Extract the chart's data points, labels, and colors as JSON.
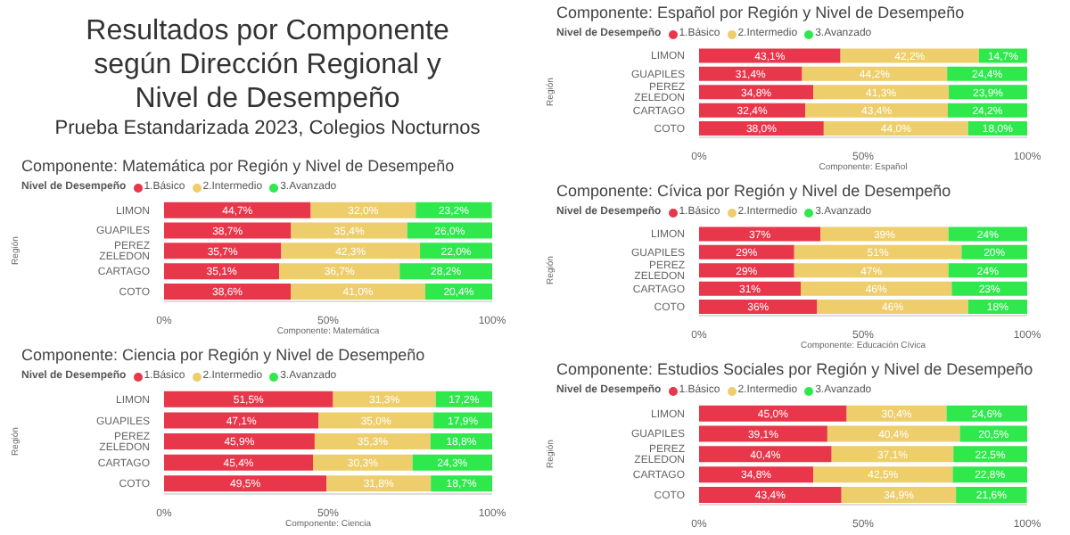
{
  "chart_data": [
    {
      "type": "other",
      "title": "Resultados por Componente según Dirección Regional y Nivel de Desempeño",
      "subtitle": "Prueba Estandarizada 2023, Colegios Nocturnos"
    },
    {
      "type": "bar",
      "orientation": "horizontal",
      "stacked": true,
      "title": "Componente: Matemática por Región y Nivel de Desempeño",
      "xlabel": "Componente: Matemática",
      "ylabel": "Región",
      "legend_title": "Nivel de Desempeño",
      "legend": "top left",
      "categories": [
        "LIMON",
        "GUAPILES",
        "PEREZ ZELEDON",
        "CARTAGO",
        "COTO"
      ],
      "xlim": [
        0,
        100
      ],
      "xticks": [
        {
          "value": 0,
          "label": "0%"
        },
        {
          "value": 50,
          "label": "50%"
        },
        {
          "value": 100,
          "label": "100%"
        }
      ],
      "series": [
        {
          "name": "1.Básico",
          "color": "#e8364a",
          "values": [
            44.7,
            38.7,
            35.7,
            35.1,
            38.6
          ],
          "value_labels": [
            "44,7%",
            "38,7%",
            "35,7%",
            "35,1%",
            "38,6%"
          ]
        },
        {
          "name": "2.Intermedio",
          "color": "#eecd6b",
          "values": [
            32.0,
            35.4,
            42.3,
            36.7,
            41.0
          ],
          "value_labels": [
            "32,0%",
            "35,4%",
            "42,3%",
            "36,7%",
            "41,0%"
          ]
        },
        {
          "name": "3.Avanzado",
          "color": "#2ee84c",
          "values": [
            23.2,
            26.0,
            22.0,
            28.2,
            20.4
          ],
          "value_labels": [
            "23,2%",
            "26,0%",
            "22,0%",
            "28,2%",
            "20,4%"
          ]
        }
      ]
    },
    {
      "type": "bar",
      "orientation": "horizontal",
      "stacked": true,
      "title": "Componente: Ciencia por Región y Nivel de Desempeño",
      "xlabel": "Componente: Ciencia",
      "ylabel": "Región",
      "legend_title": "Nivel de Desempeño",
      "legend": "top left",
      "categories": [
        "LIMON",
        "GUAPILES",
        "PEREZ ZELEDON",
        "CARTAGO",
        "COTO"
      ],
      "xlim": [
        0,
        100
      ],
      "xticks": [
        {
          "value": 0,
          "label": "0%"
        },
        {
          "value": 50,
          "label": "50%"
        },
        {
          "value": 100,
          "label": "100%"
        }
      ],
      "series": [
        {
          "name": "1.Básico",
          "color": "#e8364a",
          "values": [
            51.5,
            47.1,
            45.9,
            45.4,
            49.5
          ],
          "value_labels": [
            "51,5%",
            "47,1%",
            "45,9%",
            "45,4%",
            "49,5%"
          ]
        },
        {
          "name": "2.Intermedio",
          "color": "#eecd6b",
          "values": [
            31.3,
            35.0,
            35.3,
            30.3,
            31.8
          ],
          "value_labels": [
            "31,3%",
            "35,0%",
            "35,3%",
            "30,3%",
            "31,8%"
          ]
        },
        {
          "name": "3.Avanzado",
          "color": "#2ee84c",
          "values": [
            17.2,
            17.9,
            18.8,
            24.3,
            18.7
          ],
          "value_labels": [
            "17,2%",
            "17,9%",
            "18,8%",
            "24,3%",
            "18,7%"
          ]
        }
      ]
    },
    {
      "type": "bar",
      "orientation": "horizontal",
      "stacked": true,
      "title": "Componente: Español por Región y Nivel de Desempeño",
      "xlabel": "Componente: Español",
      "ylabel": "Región",
      "legend_title": "Nivel de Desempeño",
      "legend": "top left",
      "categories": [
        "LIMON",
        "GUAPILES",
        "PEREZ ZELEDON",
        "CARTAGO",
        "COTO"
      ],
      "xlim": [
        0,
        100
      ],
      "xticks": [
        {
          "value": 0,
          "label": "0%"
        },
        {
          "value": 50,
          "label": "50%"
        },
        {
          "value": 100,
          "label": "100%"
        }
      ],
      "series": [
        {
          "name": "1.Básico",
          "color": "#e8364a",
          "values": [
            43.1,
            31.4,
            34.8,
            32.4,
            38.0
          ],
          "value_labels": [
            "43,1%",
            "31,4%",
            "34,8%",
            "32,4%",
            "38,0%"
          ]
        },
        {
          "name": "2.Intermedio",
          "color": "#eecd6b",
          "values": [
            42.2,
            44.2,
            41.3,
            43.4,
            44.0
          ],
          "value_labels": [
            "42,2%",
            "44,2%",
            "41,3%",
            "43,4%",
            "44,0%"
          ]
        },
        {
          "name": "3.Avanzado",
          "color": "#2ee84c",
          "values": [
            14.7,
            24.4,
            23.9,
            24.2,
            18.0
          ],
          "value_labels": [
            "14,7%",
            "24,4%",
            "23,9%",
            "24,2%",
            "18,0%"
          ]
        }
      ]
    },
    {
      "type": "bar",
      "orientation": "horizontal",
      "stacked": true,
      "title": "Componente: Cívica por Región y Nivel de Desempeño",
      "xlabel": "Componente: Educación Cívica",
      "ylabel": "Región",
      "legend_title": "Nivel de Desempeño",
      "legend": "top left",
      "categories": [
        "LIMON",
        "GUAPILES",
        "PEREZ ZELEDON",
        "CARTAGO",
        "COTO"
      ],
      "xlim": [
        0,
        100
      ],
      "xticks": [
        {
          "value": 0,
          "label": "0%"
        },
        {
          "value": 50,
          "label": "50%"
        },
        {
          "value": 100,
          "label": "100%"
        }
      ],
      "series": [
        {
          "name": "1.Básico",
          "color": "#e8364a",
          "values": [
            37,
            29,
            29,
            31,
            36
          ],
          "value_labels": [
            "37%",
            "29%",
            "29%",
            "31%",
            "36%"
          ]
        },
        {
          "name": "2.Intermedio",
          "color": "#eecd6b",
          "values": [
            39,
            51,
            47,
            46,
            46
          ],
          "value_labels": [
            "39%",
            "51%",
            "47%",
            "46%",
            "46%"
          ]
        },
        {
          "name": "3.Avanzado",
          "color": "#2ee84c",
          "values": [
            24,
            20,
            24,
            23,
            18
          ],
          "value_labels": [
            "24%",
            "20%",
            "24%",
            "23%",
            "18%"
          ]
        }
      ]
    },
    {
      "type": "bar",
      "orientation": "horizontal",
      "stacked": true,
      "title": "Componente: Estudios Sociales por Región y Nivel de Desempeño",
      "ylabel": "Región",
      "legend_title": "Nivel de Desempeño",
      "legend": "top left",
      "categories": [
        "LIMON",
        "GUAPILES",
        "PEREZ ZELEDON",
        "CARTAGO",
        "COTO"
      ],
      "xlim": [
        0,
        100
      ],
      "xticks": [
        {
          "value": 0,
          "label": "0%"
        },
        {
          "value": 50,
          "label": "50%"
        },
        {
          "value": 100,
          "label": "100%"
        }
      ],
      "series": [
        {
          "name": "1.Básico",
          "color": "#e8364a",
          "values": [
            45.0,
            39.1,
            40.4,
            34.8,
            43.4
          ],
          "value_labels": [
            "45,0%",
            "39,1%",
            "40,4%",
            "34,8%",
            "43,4%"
          ]
        },
        {
          "name": "2.Intermedio",
          "color": "#eecd6b",
          "values": [
            30.4,
            40.4,
            37.1,
            42.5,
            34.9
          ],
          "value_labels": [
            "30,4%",
            "40,4%",
            "37,1%",
            "42,5%",
            "34,9%"
          ]
        },
        {
          "name": "3.Avanzado",
          "color": "#2ee84c",
          "values": [
            24.6,
            20.5,
            22.5,
            22.8,
            21.6
          ],
          "value_labels": [
            "24,6%",
            "20,5%",
            "22,5%",
            "22,8%",
            "21,6%"
          ]
        }
      ]
    }
  ]
}
